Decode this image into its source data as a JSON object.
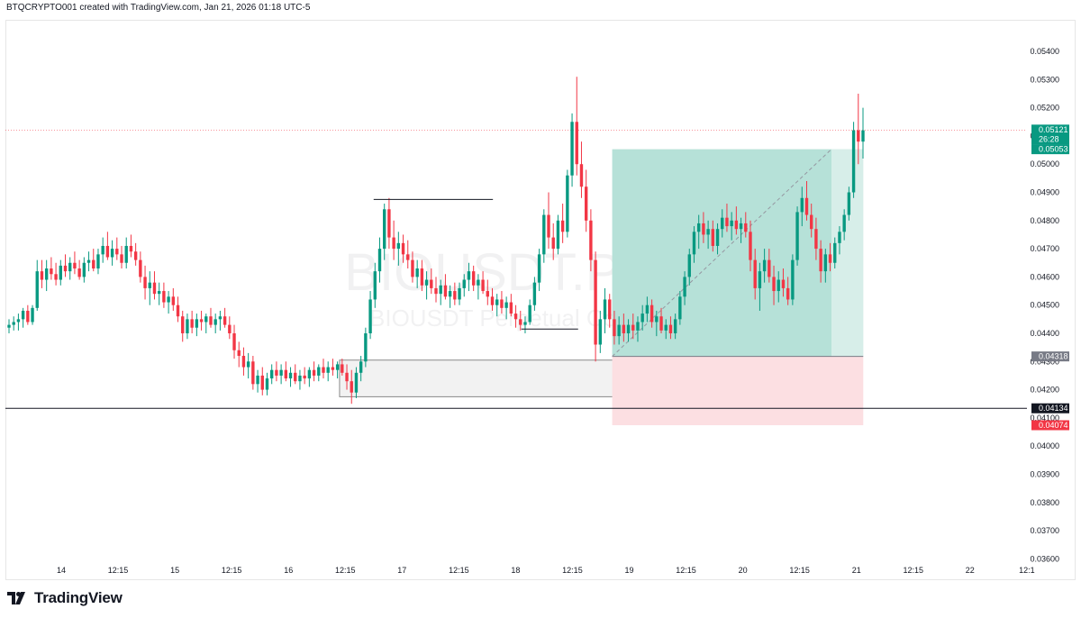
{
  "header": {
    "text": "BTQCRYPTO001 created with TradingView.com, Jan 21, 2026 01:18 UTC-5"
  },
  "brand": {
    "name": "TradingView",
    "logo_icon": "tradingview-logo-icon"
  },
  "watermark": {
    "symbol": "BIOUSDT.P, 45",
    "description": "BIOUSDT Perpetual Co"
  },
  "chart_data": {
    "type": "candlestick",
    "symbol": "BIOUSDT.P",
    "interval": "45",
    "title": "",
    "ylim": [
      0.0355,
      0.0548
    ],
    "y_ticks": [
      "0.05400",
      "0.05300",
      "0.05200",
      "0.05100",
      "0.05000",
      "0.04900",
      "0.04800",
      "0.04700",
      "0.04600",
      "0.04500",
      "0.04400",
      "0.04300",
      "0.04200",
      "0.04100",
      "0.04000",
      "0.03900",
      "0.03800",
      "0.03700",
      "0.03600"
    ],
    "x_ticks": [
      {
        "label": "14",
        "t": 0.5
      },
      {
        "label": "12:15",
        "t": 1.0
      },
      {
        "label": "15",
        "t": 1.5
      },
      {
        "label": "12:15",
        "t": 2.0
      },
      {
        "label": "16",
        "t": 2.5
      },
      {
        "label": "12:15",
        "t": 3.0
      },
      {
        "label": "17",
        "t": 3.5
      },
      {
        "label": "12:15",
        "t": 4.0
      },
      {
        "label": "18",
        "t": 4.5
      },
      {
        "label": "12:15",
        "t": 5.0
      },
      {
        "label": "19",
        "t": 5.5
      },
      {
        "label": "12:15",
        "t": 6.0
      },
      {
        "label": "20",
        "t": 6.5
      },
      {
        "label": "12:15",
        "t": 7.0
      },
      {
        "label": "21",
        "t": 7.5
      },
      {
        "label": "12:15",
        "t": 8.0
      },
      {
        "label": "22",
        "t": 8.5
      },
      {
        "label": "12:1",
        "t": 9.0
      }
    ],
    "colors": {
      "up": "#089981",
      "down": "#f23645",
      "profit_zone": "#b2dfd6",
      "loss_zone": "#fcdfe2",
      "text": "#131722",
      "grid_border": "#e6e6e6"
    },
    "price_labels": [
      {
        "value": 0.05121,
        "text": "0.05121",
        "subtext": "26:28",
        "bg": "#089981",
        "fg": "#ffffff"
      },
      {
        "value": 0.05053,
        "text": "0.05053",
        "bg": "#089981",
        "fg": "#ffffff"
      },
      {
        "value": 0.04318,
        "text": "0.04318",
        "bg": "#787b86",
        "fg": "#ffffff"
      },
      {
        "value": 0.04134,
        "text": "0.04134",
        "bg": "#131722",
        "fg": "#ffffff"
      },
      {
        "value": 0.04074,
        "text": "0.04074",
        "bg": "#f23645",
        "fg": "#ffffff"
      }
    ],
    "horizontal_line": {
      "value": 0.04134,
      "color": "#131722"
    },
    "last_price_line": {
      "value": 0.05121,
      "color": "#f23645"
    },
    "position": {
      "type": "long",
      "t_start": 5.35,
      "t_end": 7.56,
      "entry": 0.04318,
      "target": 0.05053,
      "stop": 0.04074
    },
    "zone_box": {
      "t_start": 2.95,
      "t_end": 5.45,
      "top": 0.04305,
      "bottom": 0.04175
    },
    "swing_high_line": {
      "t_start": 3.25,
      "t_end": 4.3,
      "value": 0.04875
    },
    "swing_low_line": {
      "t_start": 4.55,
      "t_end": 5.05,
      "value": 0.04415
    },
    "ohlc": [
      [
        0.0442,
        0.0445,
        0.044,
        0.0443
      ],
      [
        0.0443,
        0.0446,
        0.0441,
        0.0444
      ],
      [
        0.0444,
        0.0447,
        0.0441,
        0.0445
      ],
      [
        0.0445,
        0.0449,
        0.0442,
        0.0448
      ],
      [
        0.0448,
        0.045,
        0.0443,
        0.0444
      ],
      [
        0.0444,
        0.045,
        0.0443,
        0.0449
      ],
      [
        0.0449,
        0.0466,
        0.0448,
        0.0462
      ],
      [
        0.0462,
        0.0466,
        0.0456,
        0.0459
      ],
      [
        0.0459,
        0.0466,
        0.0455,
        0.0463
      ],
      [
        0.0463,
        0.0467,
        0.0459,
        0.0461
      ],
      [
        0.0461,
        0.0465,
        0.0457,
        0.0459
      ],
      [
        0.0459,
        0.0466,
        0.0457,
        0.0464
      ],
      [
        0.0464,
        0.0468,
        0.046,
        0.0462
      ],
      [
        0.0462,
        0.0467,
        0.0459,
        0.0465
      ],
      [
        0.0465,
        0.0469,
        0.0461,
        0.0463
      ],
      [
        0.0463,
        0.0466,
        0.0459,
        0.046
      ],
      [
        0.046,
        0.0467,
        0.0458,
        0.0465
      ],
      [
        0.0465,
        0.0469,
        0.0462,
        0.0466
      ],
      [
        0.0466,
        0.047,
        0.0462,
        0.0463
      ],
      [
        0.0463,
        0.047,
        0.0461,
        0.0468
      ],
      [
        0.0468,
        0.0474,
        0.0465,
        0.0471
      ],
      [
        0.0471,
        0.0476,
        0.0466,
        0.0467
      ],
      [
        0.0467,
        0.0473,
        0.0464,
        0.047
      ],
      [
        0.047,
        0.0474,
        0.0466,
        0.0468
      ],
      [
        0.0468,
        0.0471,
        0.0463,
        0.0465
      ],
      [
        0.0465,
        0.0474,
        0.0463,
        0.0471
      ],
      [
        0.0471,
        0.0475,
        0.0467,
        0.0469
      ],
      [
        0.0469,
        0.0472,
        0.0464,
        0.0466
      ],
      [
        0.0466,
        0.0469,
        0.0458,
        0.046
      ],
      [
        0.046,
        0.0464,
        0.0452,
        0.0456
      ],
      [
        0.0456,
        0.0462,
        0.045,
        0.0458
      ],
      [
        0.0458,
        0.0462,
        0.0452,
        0.0454
      ],
      [
        0.0454,
        0.0458,
        0.045,
        0.0455
      ],
      [
        0.0455,
        0.0458,
        0.0449,
        0.0451
      ],
      [
        0.0451,
        0.0455,
        0.0447,
        0.0453
      ],
      [
        0.0453,
        0.0456,
        0.0448,
        0.045
      ],
      [
        0.045,
        0.0453,
        0.0444,
        0.0446
      ],
      [
        0.0446,
        0.0448,
        0.0437,
        0.044
      ],
      [
        0.044,
        0.0447,
        0.0438,
        0.0445
      ],
      [
        0.0445,
        0.0448,
        0.044,
        0.0442
      ],
      [
        0.0442,
        0.0447,
        0.0439,
        0.0445
      ],
      [
        0.0445,
        0.0448,
        0.0441,
        0.0444
      ],
      [
        0.0444,
        0.0447,
        0.044,
        0.0446
      ],
      [
        0.0446,
        0.0449,
        0.0442,
        0.0443
      ],
      [
        0.0443,
        0.0447,
        0.044,
        0.0445
      ],
      [
        0.0445,
        0.0448,
        0.0441,
        0.0446
      ],
      [
        0.0446,
        0.0449,
        0.0442,
        0.0443
      ],
      [
        0.0443,
        0.0446,
        0.0438,
        0.044
      ],
      [
        0.044,
        0.0443,
        0.0431,
        0.0434
      ],
      [
        0.0434,
        0.0437,
        0.0428,
        0.0432
      ],
      [
        0.0432,
        0.0435,
        0.0425,
        0.0428
      ],
      [
        0.0428,
        0.0433,
        0.0424,
        0.043
      ],
      [
        0.043,
        0.0432,
        0.042,
        0.0422
      ],
      [
        0.0422,
        0.0427,
        0.0419,
        0.0425
      ],
      [
        0.0425,
        0.0428,
        0.0418,
        0.042
      ],
      [
        0.042,
        0.0426,
        0.0418,
        0.0424
      ],
      [
        0.0424,
        0.0429,
        0.0422,
        0.0427
      ],
      [
        0.0427,
        0.043,
        0.0423,
        0.0425
      ],
      [
        0.0425,
        0.0429,
        0.0422,
        0.0427
      ],
      [
        0.0427,
        0.043,
        0.0423,
        0.0424
      ],
      [
        0.0424,
        0.0428,
        0.0421,
        0.0426
      ],
      [
        0.0426,
        0.0429,
        0.0422,
        0.0423
      ],
      [
        0.0423,
        0.0427,
        0.042,
        0.0425
      ],
      [
        0.0425,
        0.0428,
        0.0422,
        0.0424
      ],
      [
        0.0424,
        0.0428,
        0.0421,
        0.0427
      ],
      [
        0.0427,
        0.043,
        0.0423,
        0.0425
      ],
      [
        0.0425,
        0.0429,
        0.0423,
        0.0428
      ],
      [
        0.0428,
        0.0431,
        0.0424,
        0.0426
      ],
      [
        0.0426,
        0.043,
        0.0423,
        0.0428
      ],
      [
        0.0428,
        0.0431,
        0.0425,
        0.0427
      ],
      [
        0.0427,
        0.043,
        0.0424,
        0.0429
      ],
      [
        0.0429,
        0.0431,
        0.0425,
        0.0426
      ],
      [
        0.0426,
        0.0429,
        0.042,
        0.0423
      ],
      [
        0.0423,
        0.0427,
        0.0415,
        0.0419
      ],
      [
        0.0419,
        0.0428,
        0.0417,
        0.0426
      ],
      [
        0.0426,
        0.0432,
        0.0423,
        0.043
      ],
      [
        0.043,
        0.0442,
        0.0428,
        0.044
      ],
      [
        0.044,
        0.0455,
        0.0438,
        0.0452
      ],
      [
        0.0452,
        0.0465,
        0.0449,
        0.0462
      ],
      [
        0.0462,
        0.0474,
        0.0458,
        0.047
      ],
      [
        0.047,
        0.0486,
        0.0466,
        0.0484
      ],
      [
        0.0484,
        0.0488,
        0.047,
        0.0474
      ],
      [
        0.0474,
        0.048,
        0.0466,
        0.047
      ],
      [
        0.047,
        0.0476,
        0.0464,
        0.0472
      ],
      [
        0.0472,
        0.0475,
        0.0465,
        0.0468
      ],
      [
        0.0468,
        0.0473,
        0.0463,
        0.0466
      ],
      [
        0.0466,
        0.0469,
        0.0458,
        0.046
      ],
      [
        0.046,
        0.0466,
        0.0456,
        0.0463
      ],
      [
        0.0463,
        0.0466,
        0.0455,
        0.0457
      ],
      [
        0.0457,
        0.0462,
        0.0452,
        0.0459
      ],
      [
        0.0459,
        0.0463,
        0.0454,
        0.0456
      ],
      [
        0.0456,
        0.046,
        0.0451,
        0.0454
      ],
      [
        0.0454,
        0.0459,
        0.045,
        0.0457
      ],
      [
        0.0457,
        0.0461,
        0.0452,
        0.0453
      ],
      [
        0.0453,
        0.0457,
        0.0449,
        0.0455
      ],
      [
        0.0455,
        0.0458,
        0.045,
        0.0452
      ],
      [
        0.0452,
        0.0458,
        0.045,
        0.0456
      ],
      [
        0.0456,
        0.0461,
        0.0453,
        0.0459
      ],
      [
        0.0459,
        0.0465,
        0.0455,
        0.0462
      ],
      [
        0.0462,
        0.0464,
        0.0455,
        0.0457
      ],
      [
        0.0457,
        0.0461,
        0.0452,
        0.0459
      ],
      [
        0.0459,
        0.0462,
        0.0454,
        0.0455
      ],
      [
        0.0455,
        0.0459,
        0.045,
        0.0453
      ],
      [
        0.0453,
        0.0456,
        0.0448,
        0.045
      ],
      [
        0.045,
        0.0454,
        0.0446,
        0.0452
      ],
      [
        0.0452,
        0.0455,
        0.0447,
        0.0449
      ],
      [
        0.0449,
        0.0453,
        0.0445,
        0.0451
      ],
      [
        0.0451,
        0.0454,
        0.0446,
        0.0447
      ],
      [
        0.0447,
        0.045,
        0.0442,
        0.0445
      ],
      [
        0.0445,
        0.0448,
        0.0441,
        0.0443
      ],
      [
        0.0443,
        0.0446,
        0.044,
        0.0444
      ],
      [
        0.0444,
        0.0452,
        0.0443,
        0.045
      ],
      [
        0.045,
        0.046,
        0.0448,
        0.0458
      ],
      [
        0.0458,
        0.047,
        0.0455,
        0.0468
      ],
      [
        0.0468,
        0.0484,
        0.0465,
        0.0482
      ],
      [
        0.0482,
        0.049,
        0.047,
        0.0474
      ],
      [
        0.0474,
        0.0479,
        0.0466,
        0.047
      ],
      [
        0.047,
        0.0482,
        0.0468,
        0.048
      ],
      [
        0.048,
        0.0486,
        0.0472,
        0.0476
      ],
      [
        0.0476,
        0.0498,
        0.0474,
        0.0496
      ],
      [
        0.0496,
        0.0518,
        0.0492,
        0.0515
      ],
      [
        0.0515,
        0.0531,
        0.0496,
        0.05
      ],
      [
        0.05,
        0.0508,
        0.0488,
        0.0492
      ],
      [
        0.0492,
        0.0498,
        0.0476,
        0.048
      ],
      [
        0.048,
        0.0484,
        0.0462,
        0.0466
      ],
      [
        0.0466,
        0.0469,
        0.043,
        0.0436
      ],
      [
        0.0436,
        0.0448,
        0.0433,
        0.0445
      ],
      [
        0.0445,
        0.0456,
        0.044,
        0.0452
      ],
      [
        0.0452,
        0.0454,
        0.0442,
        0.0445
      ],
      [
        0.0445,
        0.0448,
        0.0436,
        0.0439
      ],
      [
        0.0439,
        0.0446,
        0.0436,
        0.0443
      ],
      [
        0.0443,
        0.0447,
        0.0437,
        0.044
      ],
      [
        0.044,
        0.0445,
        0.0437,
        0.0443
      ],
      [
        0.0443,
        0.0447,
        0.0438,
        0.0441
      ],
      [
        0.0441,
        0.0446,
        0.0437,
        0.0444
      ],
      [
        0.0444,
        0.045,
        0.0441,
        0.0447
      ],
      [
        0.0447,
        0.0453,
        0.0444,
        0.045
      ],
      [
        0.045,
        0.0452,
        0.0442,
        0.0444
      ],
      [
        0.0444,
        0.0448,
        0.0439,
        0.0446
      ],
      [
        0.0446,
        0.0449,
        0.044,
        0.0441
      ],
      [
        0.0441,
        0.0445,
        0.0438,
        0.0443
      ],
      [
        0.0443,
        0.0446,
        0.0438,
        0.044
      ],
      [
        0.044,
        0.0447,
        0.0438,
        0.0445
      ],
      [
        0.0445,
        0.0455,
        0.0443,
        0.0453
      ],
      [
        0.0453,
        0.0462,
        0.045,
        0.046
      ],
      [
        0.046,
        0.047,
        0.0457,
        0.0468
      ],
      [
        0.0468,
        0.0478,
        0.0465,
        0.0476
      ],
      [
        0.0476,
        0.0482,
        0.047,
        0.0479
      ],
      [
        0.0479,
        0.0483,
        0.0472,
        0.0475
      ],
      [
        0.0475,
        0.048,
        0.047,
        0.0477
      ],
      [
        0.0477,
        0.048,
        0.0469,
        0.0471
      ],
      [
        0.0471,
        0.0479,
        0.0468,
        0.0477
      ],
      [
        0.0477,
        0.0484,
        0.0474,
        0.0481
      ],
      [
        0.0481,
        0.0486,
        0.0476,
        0.0478
      ],
      [
        0.0478,
        0.0483,
        0.0473,
        0.048
      ],
      [
        0.048,
        0.0485,
        0.0475,
        0.0477
      ],
      [
        0.0477,
        0.0481,
        0.0472,
        0.0479
      ],
      [
        0.0479,
        0.0483,
        0.0474,
        0.0476
      ],
      [
        0.0476,
        0.048,
        0.0462,
        0.0466
      ],
      [
        0.0466,
        0.047,
        0.0452,
        0.0456
      ],
      [
        0.0456,
        0.0465,
        0.0448,
        0.0462
      ],
      [
        0.0462,
        0.047,
        0.0458,
        0.0466
      ],
      [
        0.0466,
        0.047,
        0.0458,
        0.046
      ],
      [
        0.046,
        0.0464,
        0.045,
        0.0455
      ],
      [
        0.0455,
        0.0462,
        0.0451,
        0.0459
      ],
      [
        0.0459,
        0.0463,
        0.0453,
        0.0456
      ],
      [
        0.0456,
        0.046,
        0.045,
        0.0452
      ],
      [
        0.0452,
        0.0468,
        0.045,
        0.0466
      ],
      [
        0.0466,
        0.0485,
        0.0464,
        0.0483
      ],
      [
        0.0483,
        0.0492,
        0.0478,
        0.0488
      ],
      [
        0.0488,
        0.0494,
        0.048,
        0.0482
      ],
      [
        0.0482,
        0.0486,
        0.0474,
        0.0477
      ],
      [
        0.0477,
        0.0481,
        0.0466,
        0.047
      ],
      [
        0.047,
        0.0473,
        0.0458,
        0.0462
      ],
      [
        0.0462,
        0.047,
        0.0458,
        0.0468
      ],
      [
        0.0468,
        0.0472,
        0.0462,
        0.0465
      ],
      [
        0.0465,
        0.0474,
        0.0463,
        0.0472
      ],
      [
        0.0472,
        0.0478,
        0.0468,
        0.0476
      ],
      [
        0.0476,
        0.0484,
        0.0473,
        0.0482
      ],
      [
        0.0482,
        0.0492,
        0.048,
        0.049
      ],
      [
        0.049,
        0.0515,
        0.0488,
        0.0512
      ],
      [
        0.0512,
        0.0525,
        0.05,
        0.0508
      ],
      [
        0.0508,
        0.052,
        0.0502,
        0.0512
      ]
    ]
  }
}
